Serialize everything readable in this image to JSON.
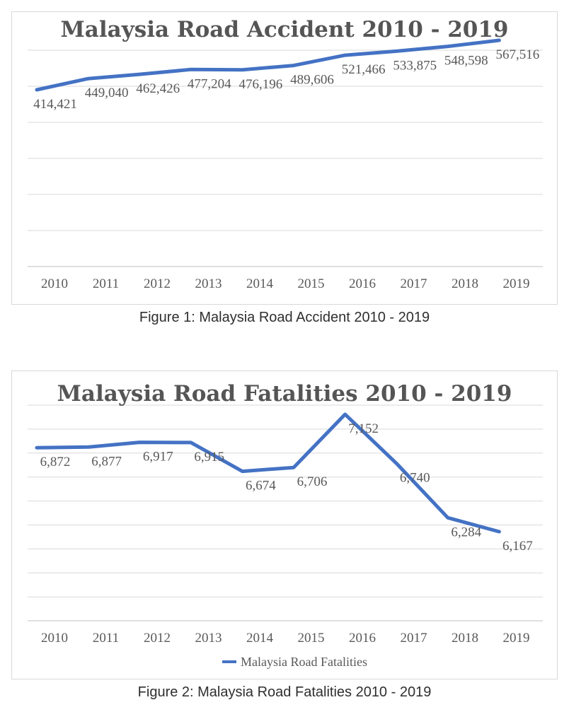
{
  "page": {
    "background": "#ffffff"
  },
  "figures": [
    {
      "caption": "Figure 1: Malaysia Road Accident 2010 - 2019"
    },
    {
      "caption": "Figure 2: Malaysia Road Fatalities 2010 - 2019"
    }
  ],
  "chart_data": [
    {
      "type": "line",
      "title": "Malaysia Road Accident 2010 - 2019",
      "categories": [
        "2010",
        "2011",
        "2012",
        "2013",
        "2014",
        "2015",
        "2016",
        "2017",
        "2018",
        "2019"
      ],
      "series": [
        {
          "name": "Malaysia Road Accident",
          "values": [
            414421,
            449040,
            462426,
            477204,
            476196,
            489606,
            521466,
            533875,
            548598,
            567516
          ]
        }
      ],
      "data_labels": [
        "414,421",
        "449,040",
        "462,426",
        "477,204",
        "476,196",
        "489,606",
        "521,466",
        "533,875",
        "548,598",
        "567,516"
      ],
      "xlabel": "",
      "ylabel": "",
      "y_axis_labels_visible": false,
      "gridline_count": 6,
      "grid": true,
      "legend": null,
      "colors": {
        "line": "#4472C4",
        "title": "#555555",
        "labels": "#595959",
        "grid": "#D9D9D9",
        "axis": "#BFBFBF",
        "panel_border": "#D9D9D9"
      }
    },
    {
      "type": "line",
      "title": "Malaysia Road Fatalities 2010 - 2019",
      "categories": [
        "2010",
        "2011",
        "2012",
        "2013",
        "2014",
        "2015",
        "2016",
        "2017",
        "2018",
        "2019"
      ],
      "series": [
        {
          "name": "Malaysia Road Fatalities",
          "values": [
            6872,
            6877,
            6917,
            6915,
            6674,
            6706,
            7152,
            6740,
            6284,
            6167
          ]
        }
      ],
      "data_labels": [
        "6,872",
        "6,877",
        "6,917",
        "6,915",
        "6,674",
        "6,706",
        "7,152",
        "6,740",
        "6,284",
        "6,167"
      ],
      "xlabel": "",
      "ylabel": "",
      "y_axis_labels_visible": false,
      "gridline_count": 9,
      "grid": true,
      "legend": {
        "position": "bottom",
        "entries": [
          "Malaysia Road Fatalities"
        ]
      },
      "colors": {
        "line": "#4472C4",
        "title": "#555555",
        "labels": "#595959",
        "grid": "#D9D9D9",
        "axis": "#BFBFBF",
        "panel_border": "#D9D9D9"
      }
    }
  ]
}
